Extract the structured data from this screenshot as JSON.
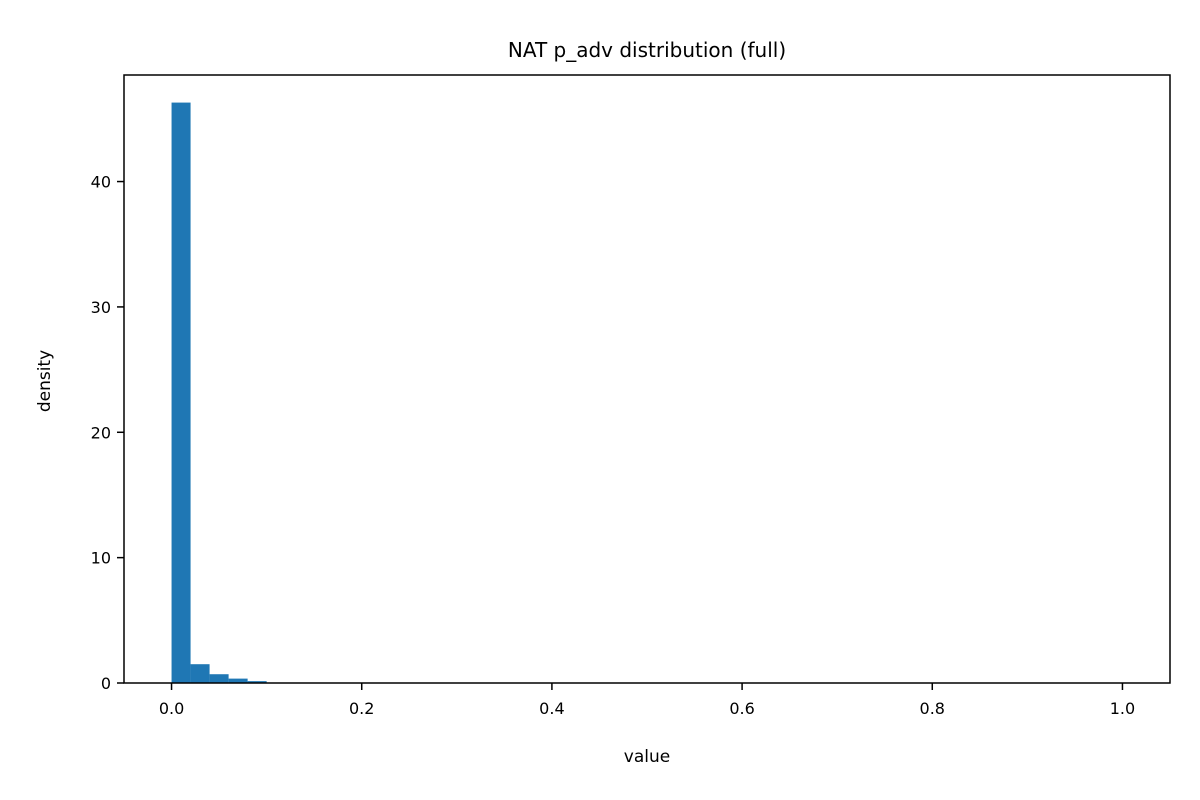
{
  "chart_data": {
    "type": "bar",
    "title": "NAT p_adv distribution (full)",
    "xlabel": "value",
    "ylabel": "density",
    "xlim": [
      -0.05,
      1.05
    ],
    "ylim": [
      0,
      48.5
    ],
    "xticks": [
      0.0,
      0.2,
      0.4,
      0.6,
      0.8,
      1.0
    ],
    "xtick_labels": [
      "0.0",
      "0.2",
      "0.4",
      "0.6",
      "0.8",
      "1.0"
    ],
    "yticks": [
      0,
      10,
      20,
      30,
      40
    ],
    "ytick_labels": [
      "0",
      "10",
      "20",
      "30",
      "40"
    ],
    "bin_width": 0.02,
    "bin_edges": [
      0.0,
      0.02,
      0.04,
      0.06,
      0.08,
      0.1
    ],
    "values": [
      46.3,
      1.5,
      0.7,
      0.35,
      0.15
    ],
    "grid": false,
    "bar_color": "#1f77b4"
  }
}
